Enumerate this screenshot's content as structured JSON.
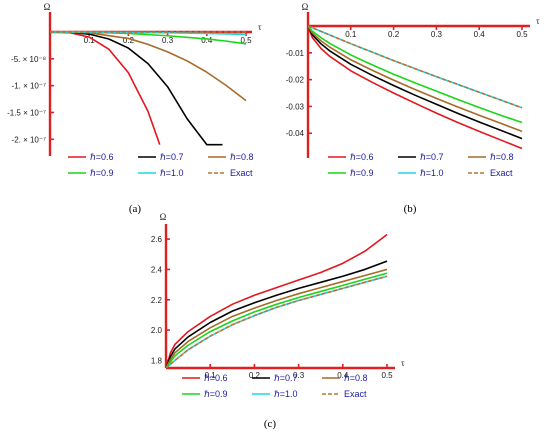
{
  "legend": [
    {
      "label": "ℏ=0.6",
      "color": "#e4161d",
      "dash": false
    },
    {
      "label": "ℏ=0.7",
      "color": "#000000",
      "dash": false
    },
    {
      "label": "ℏ=0.8",
      "color": "#a66a2a",
      "dash": false
    },
    {
      "label": "ℏ=0.9",
      "color": "#19d619",
      "dash": false
    },
    {
      "label": "ℏ=1.0",
      "color": "#1bd6e6",
      "dash": false
    },
    {
      "label": "Exact",
      "color": "#b87333",
      "dash": true
    }
  ],
  "chart_data": [
    {
      "type": "line",
      "caption": "(a)",
      "xlabel": "τ",
      "ylabel": "Ω",
      "xlim": [
        0,
        0.5
      ],
      "ylim": [
        -2.2e-07,
        1.2e-08
      ],
      "xticks": [
        0.1,
        0.2,
        0.3,
        0.4,
        0.5
      ],
      "xtick_labels": [
        "0.1",
        "0.2",
        "0.3",
        "0.4",
        "0.5"
      ],
      "yticks": [
        -5e-08,
        -1e-07,
        -1.5e-07,
        -2e-07
      ],
      "ytick_labels": [
        "-5. × 10⁻⁸",
        "-1. × 10⁻⁷",
        "-1.5 × 10⁻⁷",
        "-2. × 10⁻⁷"
      ],
      "grid": false,
      "series": [
        {
          "name": "ℏ=0.6",
          "x": [
            0,
            0.05,
            0.1,
            0.15,
            0.2,
            0.25,
            0.28
          ],
          "y": [
            0,
            -1.2e-09,
            -9.5e-09,
            -3.2e-08,
            -7.6e-08,
            -1.48e-07,
            -2.1e-07
          ]
        },
        {
          "name": "ℏ=0.7",
          "x": [
            0,
            0.05,
            0.1,
            0.15,
            0.2,
            0.25,
            0.3,
            0.35,
            0.4,
            0.44
          ],
          "y": [
            0,
            -5e-10,
            -4e-09,
            -1.3e-08,
            -3e-08,
            -5.9e-08,
            -1.02e-07,
            -1.62e-07,
            -2.1e-07,
            -2.1e-07
          ]
        },
        {
          "name": "ℏ=0.8",
          "x": [
            0,
            0.1,
            0.2,
            0.25,
            0.3,
            0.35,
            0.4,
            0.45,
            0.5
          ],
          "y": [
            0,
            -1.5e-09,
            -1.2e-08,
            -2.3e-08,
            -3.7e-08,
            -5.4e-08,
            -7.5e-08,
            -1e-07,
            -1.28e-07
          ]
        },
        {
          "name": "ℏ=0.9",
          "x": [
            0,
            0.1,
            0.2,
            0.3,
            0.4,
            0.45,
            0.5
          ],
          "y": [
            0,
            -4e-10,
            -2.8e-09,
            -7e-09,
            -1.3e-08,
            -1.7e-08,
            -2.2e-08
          ]
        },
        {
          "name": "ℏ=1.0",
          "x": [
            0,
            0.1,
            0.2,
            0.3,
            0.4,
            0.5
          ],
          "y": [
            0,
            -1e-10,
            -6e-10,
            -1.5e-09,
            -2.8e-09,
            -4.5e-09
          ]
        },
        {
          "name": "Exact",
          "x": [
            0,
            0.1,
            0.2,
            0.3,
            0.4,
            0.5
          ],
          "y": [
            0,
            0,
            0,
            0,
            0,
            0
          ]
        }
      ]
    },
    {
      "type": "line",
      "caption": "(b)",
      "xlabel": "τ",
      "ylabel": "Ω",
      "xlim": [
        0,
        0.5
      ],
      "ylim": [
        -0.047,
        0.001
      ],
      "xticks": [
        0.1,
        0.2,
        0.3,
        0.4,
        0.5
      ],
      "xtick_labels": [
        "0.1",
        "0.2",
        "0.3",
        "0.4",
        "0.5"
      ],
      "yticks": [
        -0.01,
        -0.02,
        -0.03,
        -0.04
      ],
      "ytick_labels": [
        "-0.01",
        "-0.02",
        "-0.03",
        "-0.04"
      ],
      "grid": false,
      "series": [
        {
          "name": "ℏ=0.6",
          "x": [
            0,
            0.01,
            0.03,
            0.05,
            0.1,
            0.15,
            0.2,
            0.25,
            0.3,
            0.35,
            0.4,
            0.45,
            0.5
          ],
          "y": [
            0,
            -0.0043,
            -0.0083,
            -0.0112,
            -0.0167,
            -0.021,
            -0.025,
            -0.0288,
            -0.0325,
            -0.036,
            -0.0393,
            -0.0425,
            -0.0457
          ]
        },
        {
          "name": "ℏ=0.7",
          "x": [
            0,
            0.01,
            0.03,
            0.05,
            0.1,
            0.15,
            0.2,
            0.25,
            0.3,
            0.35,
            0.4,
            0.45,
            0.5
          ],
          "y": [
            0,
            -0.0033,
            -0.0066,
            -0.0092,
            -0.0143,
            -0.0184,
            -0.0222,
            -0.0258,
            -0.0292,
            -0.0326,
            -0.0358,
            -0.0389,
            -0.042
          ]
        },
        {
          "name": "ℏ=0.8",
          "x": [
            0,
            0.01,
            0.03,
            0.05,
            0.1,
            0.15,
            0.2,
            0.25,
            0.3,
            0.35,
            0.4,
            0.45,
            0.5
          ],
          "y": [
            0,
            -0.0026,
            -0.0055,
            -0.0078,
            -0.0126,
            -0.0165,
            -0.0202,
            -0.0237,
            -0.027,
            -0.0302,
            -0.0333,
            -0.0363,
            -0.0393
          ]
        },
        {
          "name": "ℏ=0.9",
          "x": [
            0,
            0.01,
            0.03,
            0.05,
            0.1,
            0.15,
            0.2,
            0.25,
            0.3,
            0.35,
            0.4,
            0.45,
            0.5
          ],
          "y": [
            0,
            -0.0019,
            -0.0043,
            -0.0064,
            -0.0108,
            -0.0145,
            -0.018,
            -0.0212,
            -0.0243,
            -0.0274,
            -0.0304,
            -0.0333,
            -0.036
          ]
        },
        {
          "name": "ℏ=1.0",
          "x": [
            0,
            0.1,
            0.2,
            0.3,
            0.4,
            0.5
          ],
          "y": [
            0,
            -0.0066,
            -0.0129,
            -0.0189,
            -0.0247,
            -0.0305
          ]
        },
        {
          "name": "Exact",
          "x": [
            0,
            0.1,
            0.2,
            0.3,
            0.4,
            0.5
          ],
          "y": [
            0,
            -0.0066,
            -0.0129,
            -0.0189,
            -0.0247,
            -0.0305
          ]
        }
      ]
    },
    {
      "type": "line",
      "caption": "(c)",
      "xlabel": "τ",
      "ylabel": "Ω",
      "xlim": [
        0,
        0.5
      ],
      "ylim": [
        1.75,
        2.66
      ],
      "xticks": [
        0.1,
        0.2,
        0.3,
        0.4,
        0.5
      ],
      "xtick_labels": [
        "0.1",
        "0.2",
        "0.3",
        "0.4",
        "0.5"
      ],
      "yticks": [
        1.8,
        2.0,
        2.2,
        2.4,
        2.6
      ],
      "ytick_labels": [
        "1.8",
        "2.0",
        "2.2",
        "2.4",
        "2.6"
      ],
      "grid": false,
      "series": [
        {
          "name": "ℏ=0.6",
          "x": [
            0,
            0.01,
            0.02,
            0.05,
            0.1,
            0.15,
            0.2,
            0.25,
            0.3,
            0.35,
            0.4,
            0.45,
            0.5
          ],
          "y": [
            1.75,
            1.85,
            1.905,
            1.99,
            2.09,
            2.17,
            2.23,
            2.28,
            2.33,
            2.38,
            2.44,
            2.52,
            2.63
          ]
        },
        {
          "name": "ℏ=0.7",
          "x": [
            0,
            0.01,
            0.02,
            0.05,
            0.1,
            0.15,
            0.2,
            0.25,
            0.3,
            0.35,
            0.4,
            0.45,
            0.5
          ],
          "y": [
            1.75,
            1.825,
            1.875,
            1.955,
            2.05,
            2.125,
            2.18,
            2.23,
            2.275,
            2.315,
            2.355,
            2.4,
            2.455
          ]
        },
        {
          "name": "ℏ=0.8",
          "x": [
            0,
            0.01,
            0.02,
            0.05,
            0.1,
            0.15,
            0.2,
            0.25,
            0.3,
            0.35,
            0.4,
            0.45,
            0.5
          ],
          "y": [
            1.75,
            1.805,
            1.85,
            1.925,
            2.015,
            2.09,
            2.145,
            2.195,
            2.24,
            2.28,
            2.32,
            2.36,
            2.4
          ]
        },
        {
          "name": "ℏ=0.9",
          "x": [
            0,
            0.01,
            0.02,
            0.05,
            0.1,
            0.15,
            0.2,
            0.25,
            0.3,
            0.35,
            0.4,
            0.45,
            0.5
          ],
          "y": [
            1.75,
            1.79,
            1.83,
            1.9,
            1.99,
            2.06,
            2.12,
            2.17,
            2.215,
            2.255,
            2.295,
            2.335,
            2.375
          ]
        },
        {
          "name": "ℏ=1.0",
          "x": [
            0,
            0.01,
            0.02,
            0.05,
            0.1,
            0.15,
            0.2,
            0.25,
            0.3,
            0.35,
            0.4,
            0.45,
            0.5
          ],
          "y": [
            1.75,
            1.775,
            1.8,
            1.87,
            1.96,
            2.035,
            2.095,
            2.15,
            2.195,
            2.235,
            2.275,
            2.315,
            2.355
          ]
        },
        {
          "name": "Exact",
          "x": [
            0,
            0.01,
            0.02,
            0.05,
            0.1,
            0.15,
            0.2,
            0.25,
            0.3,
            0.35,
            0.4,
            0.45,
            0.5
          ],
          "y": [
            1.75,
            1.775,
            1.8,
            1.87,
            1.96,
            2.035,
            2.095,
            2.15,
            2.195,
            2.235,
            2.275,
            2.315,
            2.355
          ]
        }
      ]
    }
  ]
}
